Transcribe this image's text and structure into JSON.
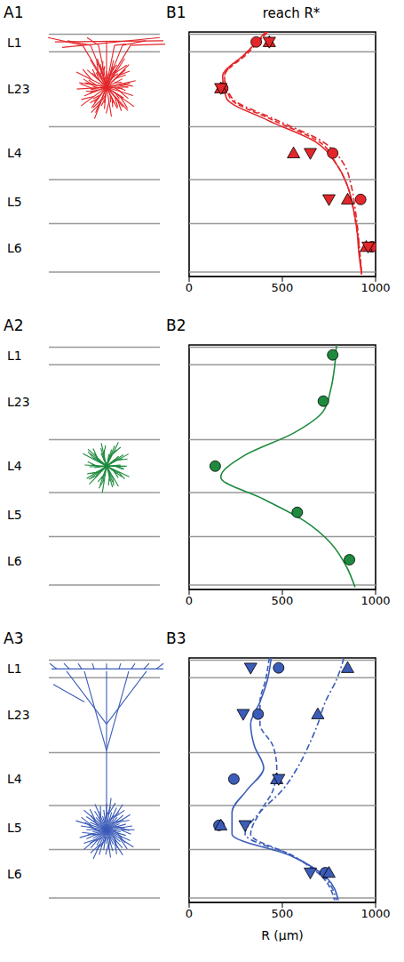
{
  "layers": {
    "labels": [
      "L1",
      "L23",
      "L4",
      "L5",
      "L6"
    ],
    "boundaries": [
      10,
      90,
      430,
      670,
      870,
      1090
    ]
  },
  "morphology_panels": [
    {
      "label": "A1",
      "color": "#e3262a"
    },
    {
      "label": "A2",
      "color": "#1e8a3e"
    },
    {
      "label": "A3",
      "color": "#3b5cb8"
    }
  ],
  "chart_data": [
    {
      "panel": "B1",
      "type": "line",
      "title": "reach R*",
      "color": "#e3262a",
      "xlim": [
        0,
        1000
      ],
      "xticks": [
        0,
        500,
        1000
      ],
      "ylim": [
        0,
        1110
      ],
      "tick_labels": "x",
      "series": [
        {
          "type": "line",
          "line_style": "solid",
          "x": [
            410,
            300,
            180,
            200,
            420,
            680,
            790,
            850,
            880,
            900,
            910,
            925
          ],
          "y": [
            0,
            100,
            200,
            300,
            400,
            500,
            600,
            700,
            800,
            900,
            1000,
            1100
          ]
        },
        {
          "type": "line",
          "line_style": "dashed",
          "x": [
            420,
            310,
            190,
            220,
            450,
            700,
            790,
            850,
            880,
            900,
            915,
            925
          ],
          "y": [
            0,
            100,
            200,
            300,
            400,
            500,
            600,
            700,
            800,
            900,
            1000,
            1100
          ]
        },
        {
          "type": "line",
          "line_style": "dashdot",
          "x": [
            420,
            300,
            190,
            230,
            470,
            720,
            830,
            870,
            890,
            905,
            915,
            925
          ],
          "y": [
            0,
            100,
            200,
            300,
            400,
            500,
            600,
            700,
            800,
            900,
            1000,
            1100
          ]
        },
        {
          "type": "scatter",
          "marker": "circle",
          "x": [
            360,
            180,
            770,
            920,
            980
          ],
          "y": [
            45,
            255,
            550,
            760,
            975
          ]
        },
        {
          "type": "scatter",
          "marker": "triangle-up",
          "x": [
            430,
            170,
            560,
            850,
            950
          ],
          "y": [
            45,
            255,
            550,
            760,
            975
          ]
        },
        {
          "type": "scatter",
          "marker": "triangle-down",
          "x": [
            430,
            170,
            650,
            750,
            960
          ],
          "y": [
            45,
            255,
            550,
            760,
            975
          ]
        }
      ]
    },
    {
      "panel": "B2",
      "type": "line",
      "color": "#1e8a3e",
      "xlim": [
        0,
        1000
      ],
      "xticks": [
        0,
        500,
        1000
      ],
      "ylim": [
        0,
        1110
      ],
      "tick_labels": "x",
      "series": [
        {
          "type": "line",
          "line_style": "solid",
          "x": [
            790,
            780,
            760,
            720,
            560,
            300,
            170,
            400,
            620,
            760,
            840,
            890
          ],
          "y": [
            0,
            100,
            200,
            300,
            400,
            500,
            600,
            700,
            800,
            900,
            1000,
            1100
          ]
        },
        {
          "type": "scatter",
          "marker": "circle",
          "x": [
            770,
            720,
            140,
            580,
            860
          ],
          "y": [
            45,
            255,
            550,
            760,
            975
          ]
        }
      ]
    },
    {
      "panel": "B3",
      "type": "line",
      "color": "#3b5cb8",
      "xlabel": "R (μm)",
      "xlim": [
        0,
        1000
      ],
      "xticks": [
        0,
        500,
        1000
      ],
      "ylim": [
        0,
        1110
      ],
      "tick_labels": "x",
      "series": [
        {
          "type": "line",
          "line_style": "solid",
          "x": [
            440,
            420,
            380,
            330,
            350,
            400,
            310,
            230,
            230,
            550,
            740,
            800
          ],
          "y": [
            0,
            100,
            200,
            300,
            400,
            500,
            600,
            700,
            800,
            900,
            1000,
            1100
          ]
        },
        {
          "type": "line",
          "line_style": "dashed",
          "x": [
            430,
            410,
            380,
            380,
            450,
            470,
            450,
            380,
            330,
            560,
            720,
            780
          ],
          "y": [
            0,
            100,
            200,
            300,
            400,
            500,
            600,
            700,
            800,
            900,
            1000,
            1100
          ]
        },
        {
          "type": "line",
          "line_style": "dashdot",
          "x": [
            830,
            790,
            730,
            690,
            640,
            580,
            500,
            380,
            300,
            560,
            730,
            790
          ],
          "y": [
            0,
            100,
            200,
            300,
            400,
            500,
            600,
            700,
            800,
            900,
            1000,
            1100
          ]
        },
        {
          "type": "scatter",
          "marker": "circle",
          "x": [
            480,
            370,
            240,
            160,
            730
          ],
          "y": [
            45,
            255,
            550,
            760,
            975
          ]
        },
        {
          "type": "scatter",
          "marker": "triangle-up",
          "x": [
            850,
            690,
            470,
            170,
            750
          ],
          "y": [
            45,
            255,
            550,
            760,
            975
          ]
        },
        {
          "type": "scatter",
          "marker": "triangle-down",
          "x": [
            330,
            290,
            480,
            300,
            650
          ],
          "y": [
            45,
            255,
            550,
            760,
            975
          ]
        }
      ]
    }
  ]
}
